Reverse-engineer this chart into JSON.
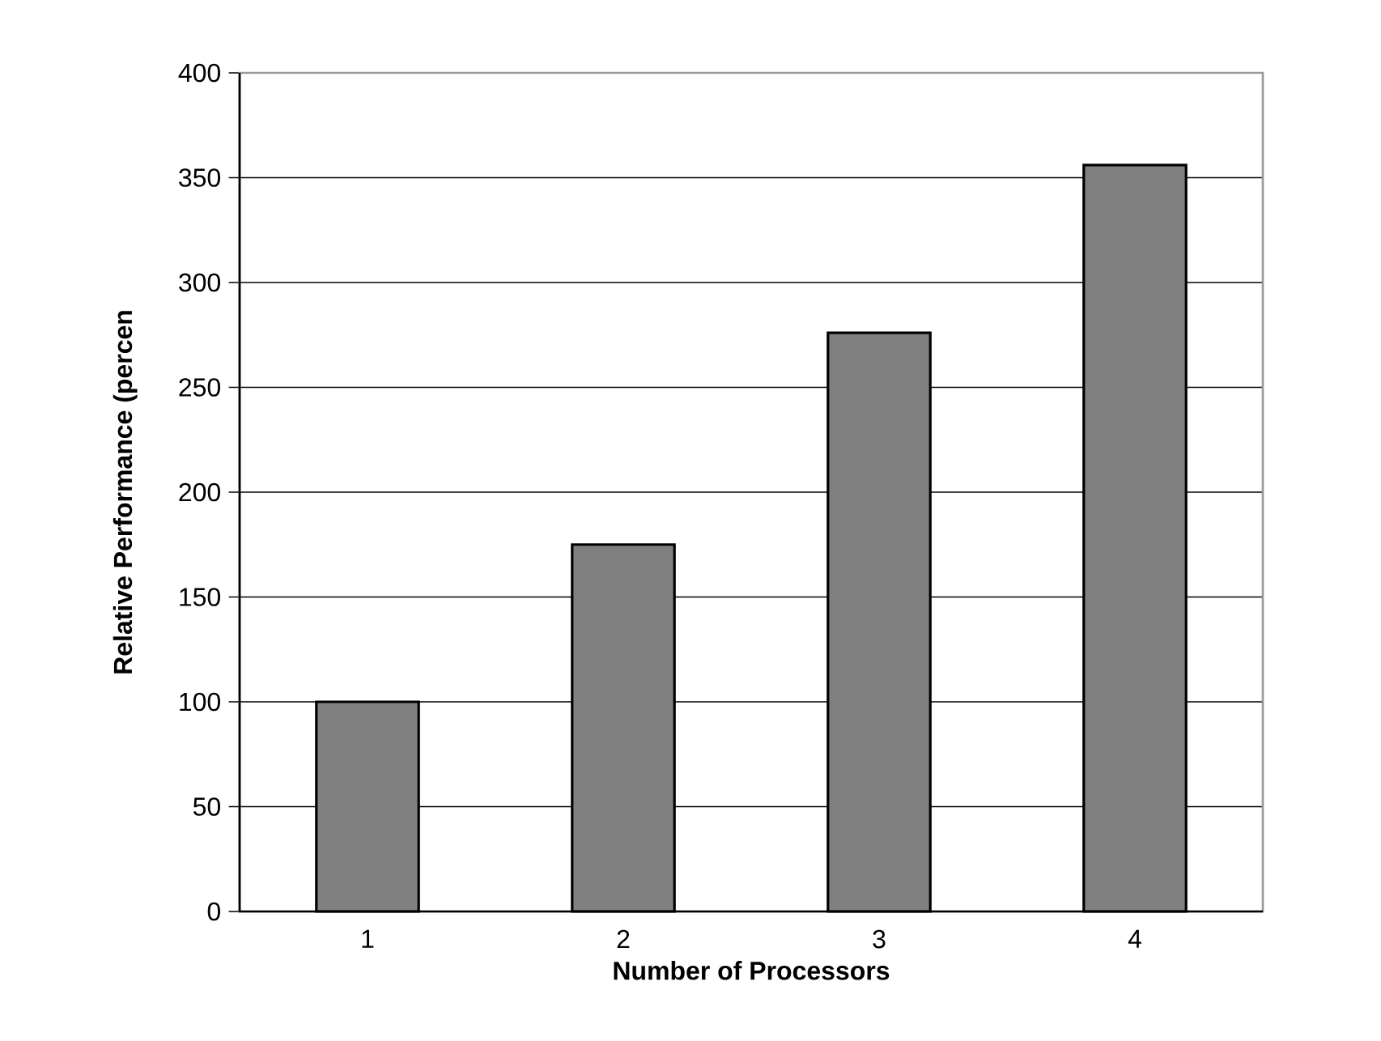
{
  "chart_data": {
    "type": "bar",
    "xlabel": "Number of Processors",
    "ylabel": "Relative Performance (percen",
    "categories": [
      "1",
      "2",
      "3",
      "4"
    ],
    "values": [
      100,
      175,
      276,
      356
    ],
    "color": "#808080",
    "ylim": [
      0,
      400
    ],
    "yticks": [
      0,
      50,
      100,
      150,
      200,
      250,
      300,
      350,
      400
    ],
    "grid": "y"
  }
}
